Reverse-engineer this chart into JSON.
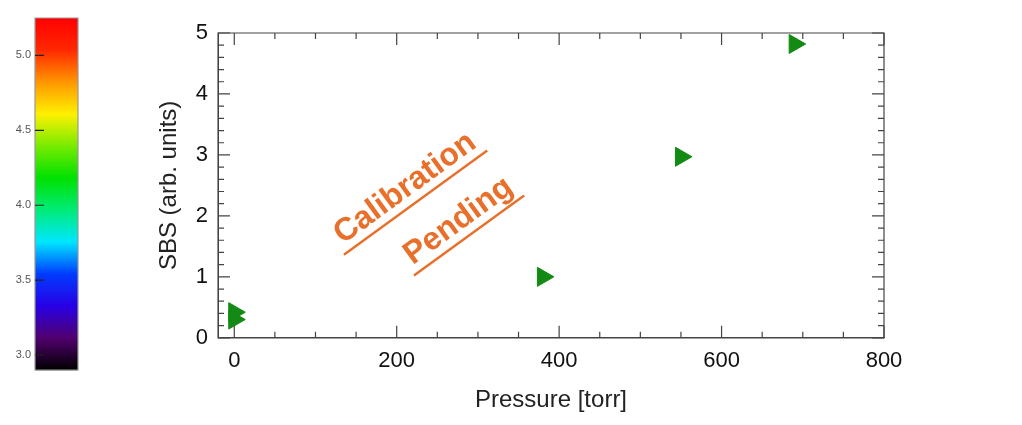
{
  "chart_data": {
    "type": "scatter",
    "xlabel": "Pressure [torr]",
    "ylabel": "SBS (arb. units)",
    "marker": "triangle",
    "x": [
      0,
      0,
      380,
      550,
      690
    ],
    "series": [
      {
        "color": "#138a13",
        "values": [
          0.3,
          0.42,
          1.0,
          2.97,
          4.82
        ]
      }
    ],
    "xlim": [
      -20,
      800
    ],
    "xticks": [
      0,
      {
        "value": 50,
        "label": null
      },
      {
        "value": 100,
        "label": null
      },
      {
        "value": 150,
        "label": null
      },
      200,
      {
        "value": 250,
        "label": null
      },
      {
        "value": 300,
        "label": null
      },
      {
        "value": 350,
        "label": null
      },
      400,
      {
        "value": 450,
        "label": null
      },
      {
        "value": 500,
        "label": null
      },
      {
        "value": 550,
        "label": null
      },
      600,
      {
        "value": 650,
        "label": null
      },
      {
        "value": 700,
        "label": null
      },
      {
        "value": 750,
        "label": null
      },
      800
    ],
    "ylim": [
      0,
      5
    ],
    "yticks": [
      0,
      {
        "value": 0.2,
        "label": null
      },
      {
        "value": 0.4,
        "label": null
      },
      {
        "value": 0.6,
        "label": null
      },
      {
        "value": 0.8,
        "label": null
      },
      1,
      {
        "value": 1.2,
        "label": null
      },
      {
        "value": 1.4,
        "label": null
      },
      {
        "value": 1.6,
        "label": null
      },
      {
        "value": 1.8,
        "label": null
      },
      2,
      {
        "value": 2.2,
        "label": null
      },
      {
        "value": 2.4,
        "label": null
      },
      {
        "value": 2.6,
        "label": null
      },
      {
        "value": 2.8,
        "label": null
      },
      3,
      {
        "value": 3.2,
        "label": null
      },
      {
        "value": 3.4,
        "label": null
      },
      {
        "value": 3.6,
        "label": null
      },
      {
        "value": 3.8,
        "label": null
      },
      4,
      {
        "value": 4.2,
        "label": null
      },
      {
        "value": 4.4,
        "label": null
      },
      {
        "value": 4.6,
        "label": null
      },
      {
        "value": 4.8,
        "label": null
      },
      5
    ],
    "clim": [
      2.9,
      5.25
    ],
    "cticks": [
      {
        "value": 3,
        "label": "3.0"
      },
      {
        "value": 3.5,
        "label": "3.5"
      },
      {
        "value": 4,
        "label": "4.0"
      },
      {
        "value": 4.5,
        "label": "4.5"
      },
      {
        "value": 5,
        "label": "5.0"
      }
    ],
    "annotations": [
      "Calibration\nPending"
    ]
  }
}
